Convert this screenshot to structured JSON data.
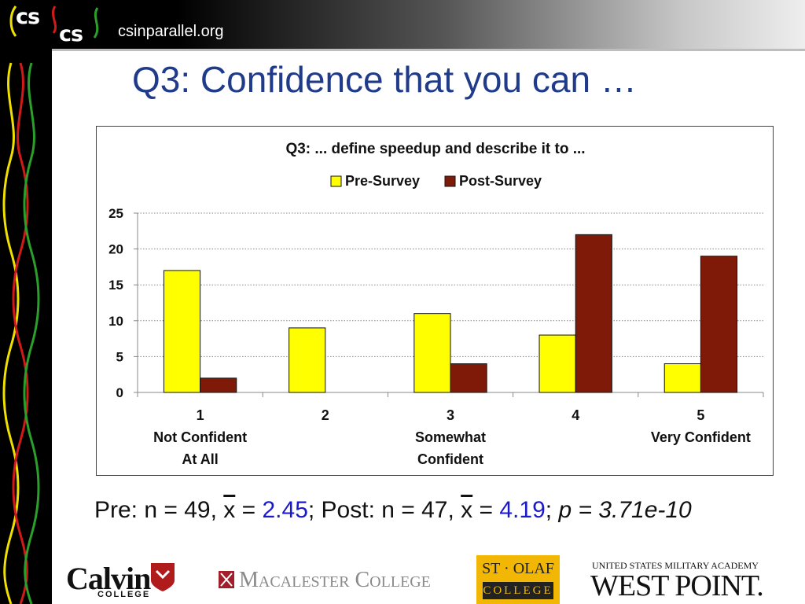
{
  "header": {
    "logo_text_1": "cs",
    "logo_text_2": "cs",
    "site_url": "csinparallel.org"
  },
  "slide": {
    "title": "Q3: Confidence that you can …"
  },
  "chart_data": {
    "type": "bar",
    "title": "Q3: ... define speedup and describe it to ...",
    "categories": [
      [
        "1",
        "Not Confident",
        "At All"
      ],
      [
        "2"
      ],
      [
        "3",
        "Somewhat",
        "Confident"
      ],
      [
        "4"
      ],
      [
        "5",
        "Very Confident"
      ]
    ],
    "series": [
      {
        "name": "Pre-Survey",
        "values": [
          17,
          9,
          11,
          8,
          4
        ],
        "color": "#ffff00"
      },
      {
        "name": "Post-Survey",
        "values": [
          2,
          0,
          4,
          22,
          19
        ],
        "color": "#7f1a08"
      }
    ],
    "ylim": [
      0,
      25
    ],
    "yticks": [
      0,
      5,
      10,
      15,
      20,
      25
    ],
    "grid": true,
    "legend": "top-center",
    "plot_background": "#ffffff",
    "xlabel": "",
    "ylabel": ""
  },
  "stats": {
    "pre_label": "Pre: n = 49, ",
    "pre_xbar": "x",
    "pre_eq": " = ",
    "pre_mean": "2.45",
    "sep1": "; Post: n = 47, ",
    "post_xbar": "x",
    "post_eq": " = ",
    "post_mean": "4.19",
    "sep2": "; ",
    "p_value": "p = 3.71e-10",
    "highlight_color": "#1a1acc"
  },
  "footer": {
    "calvin": "Calvin",
    "calvin_sub": "COLLEGE",
    "macalester": "Macalester College",
    "stolaf_top": "ST · OLAF",
    "stolaf_bottom": "COLLEGE",
    "westpoint_top": "UNITED STATES MILITARY ACADEMY",
    "westpoint_name": "WEST POINT."
  }
}
